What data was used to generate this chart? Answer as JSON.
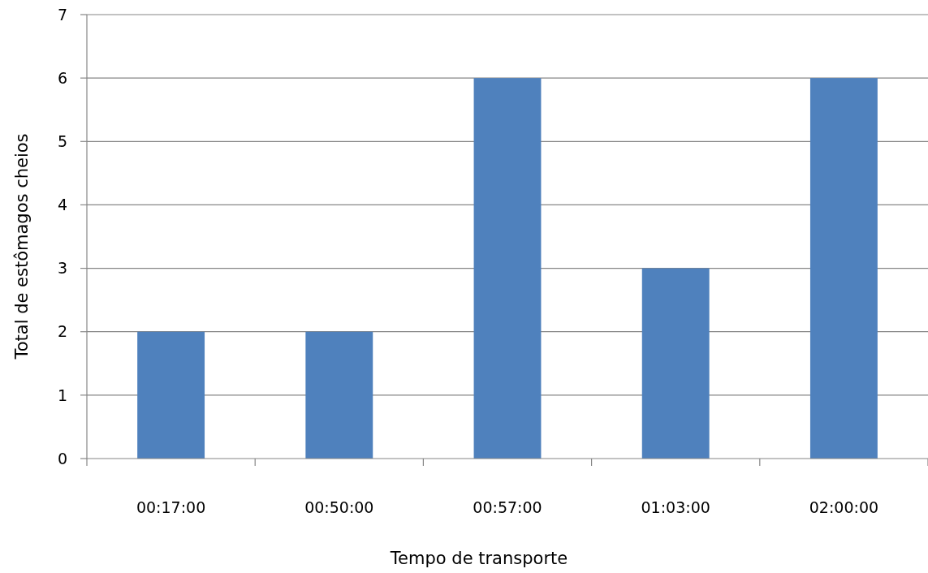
{
  "chart_data": {
    "type": "bar",
    "xlabel": "Tempo de transporte",
    "ylabel": "Total de estômagos cheios",
    "categories": [
      "00:17:00",
      "00:50:00",
      "00:57:00",
      "01:03:00",
      "02:00:00"
    ],
    "values": [
      2,
      2,
      6,
      3,
      6
    ],
    "color": "#4f81bd",
    "ylim": [
      0,
      7
    ],
    "yticks": [
      0,
      1,
      2,
      3,
      4,
      5,
      6,
      7
    ],
    "grid": "y"
  }
}
